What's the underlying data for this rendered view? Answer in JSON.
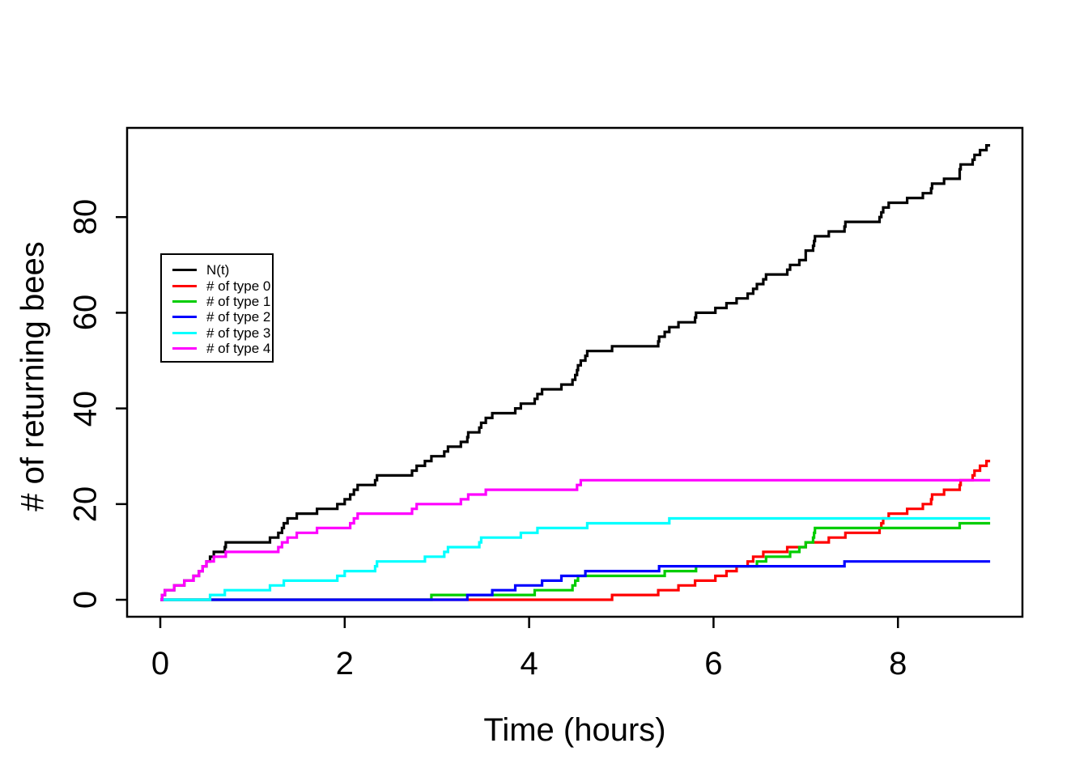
{
  "figure": {
    "background": "#ffffff",
    "axis_color": "#000000"
  },
  "chart_data": {
    "type": "line",
    "subtype": "step-post-counting-process",
    "title": "",
    "xlabel": "Time (hours)",
    "ylabel": "# of returning bees",
    "xlim": [
      -0.36,
      9.35
    ],
    "ylim": [
      -3.55,
      98.65
    ],
    "xticks": [
      0,
      2,
      4,
      6,
      8
    ],
    "yticks": [
      0,
      20,
      40,
      60,
      80
    ],
    "grid": false,
    "legend_position": "upper-left-inside",
    "t_start": 0,
    "t_end": 9.0,
    "series": [
      {
        "name": "N(t)",
        "color": "#000000",
        "start_value": 0,
        "final_value": 95,
        "event_times": [
          0.02,
          0.05,
          0.15,
          0.26,
          0.36,
          0.42,
          0.46,
          0.5,
          0.54,
          0.58,
          0.7,
          0.71,
          1.19,
          1.28,
          1.32,
          1.34,
          1.38,
          1.48,
          1.7,
          1.92,
          2.0,
          2.06,
          2.1,
          2.14,
          2.33,
          2.35,
          2.73,
          2.78,
          2.87,
          2.94,
          3.08,
          3.12,
          3.26,
          3.33,
          3.34,
          3.46,
          3.48,
          3.53,
          3.6,
          3.85,
          3.91,
          4.06,
          4.09,
          4.14,
          4.35,
          4.47,
          4.5,
          4.52,
          4.53,
          4.56,
          4.61,
          4.63,
          4.9,
          5.4,
          5.41,
          5.47,
          5.52,
          5.62,
          5.8,
          5.81,
          6.02,
          6.14,
          6.25,
          6.37,
          6.43,
          6.47,
          6.54,
          6.57,
          6.8,
          6.83,
          6.93,
          7.0,
          7.0,
          7.08,
          7.09,
          7.1,
          7.25,
          7.42,
          7.43,
          7.8,
          7.82,
          7.84,
          7.9,
          8.1,
          8.27,
          8.36,
          8.37,
          8.5,
          8.67,
          8.67,
          8.68,
          8.81,
          8.83,
          8.89,
          8.96
        ]
      },
      {
        "name": "# of type 0",
        "color": "#FF0000",
        "start_value": 0,
        "final_value": 29,
        "event_times": [
          4.9,
          5.4,
          5.62,
          5.8,
          6.02,
          6.14,
          6.25,
          6.37,
          6.43,
          6.54,
          6.8,
          7.0,
          7.25,
          7.43,
          7.8,
          7.82,
          7.84,
          7.9,
          8.1,
          8.27,
          8.36,
          8.37,
          8.5,
          8.67,
          8.68,
          8.81,
          8.83,
          8.89,
          8.96
        ]
      },
      {
        "name": "# of type 1",
        "color": "#00CD00",
        "start_value": 0,
        "final_value": 16,
        "event_times": [
          2.94,
          4.06,
          4.47,
          4.5,
          4.53,
          5.47,
          5.81,
          6.47,
          6.57,
          6.83,
          6.93,
          7.0,
          7.08,
          7.09,
          7.1,
          8.67
        ]
      },
      {
        "name": "# of type 2",
        "color": "#0000FF",
        "start_value": 0,
        "final_value": 8,
        "event_times": [
          3.33,
          3.6,
          3.85,
          4.14,
          4.35,
          4.61,
          5.41,
          7.42
        ]
      },
      {
        "name": "# of type 3",
        "color": "#00FFFF",
        "start_value": 0,
        "final_value": 17,
        "event_times": [
          0.54,
          0.7,
          1.19,
          1.34,
          1.92,
          2.0,
          2.33,
          2.35,
          2.87,
          3.08,
          3.12,
          3.46,
          3.48,
          3.91,
          4.09,
          4.63,
          5.52
        ]
      },
      {
        "name": "# of type 4",
        "color": "#FF00FF",
        "start_value": 0,
        "final_value": 25,
        "event_times": [
          0.02,
          0.05,
          0.15,
          0.26,
          0.36,
          0.42,
          0.46,
          0.5,
          0.58,
          0.71,
          1.28,
          1.32,
          1.38,
          1.48,
          1.7,
          2.06,
          2.1,
          2.14,
          2.73,
          2.78,
          3.26,
          3.34,
          3.53,
          4.52,
          4.56
        ]
      }
    ]
  },
  "legend": {
    "entries": [
      {
        "label": "N(t)",
        "color": "#000000"
      },
      {
        "label": "# of type 0",
        "color": "#FF0000"
      },
      {
        "label": "# of type 1",
        "color": "#00CD00"
      },
      {
        "label": "# of type 2",
        "color": "#0000FF"
      },
      {
        "label": "# of type 3",
        "color": "#00FFFF"
      },
      {
        "label": "# of type 4",
        "color": "#FF00FF"
      }
    ]
  }
}
